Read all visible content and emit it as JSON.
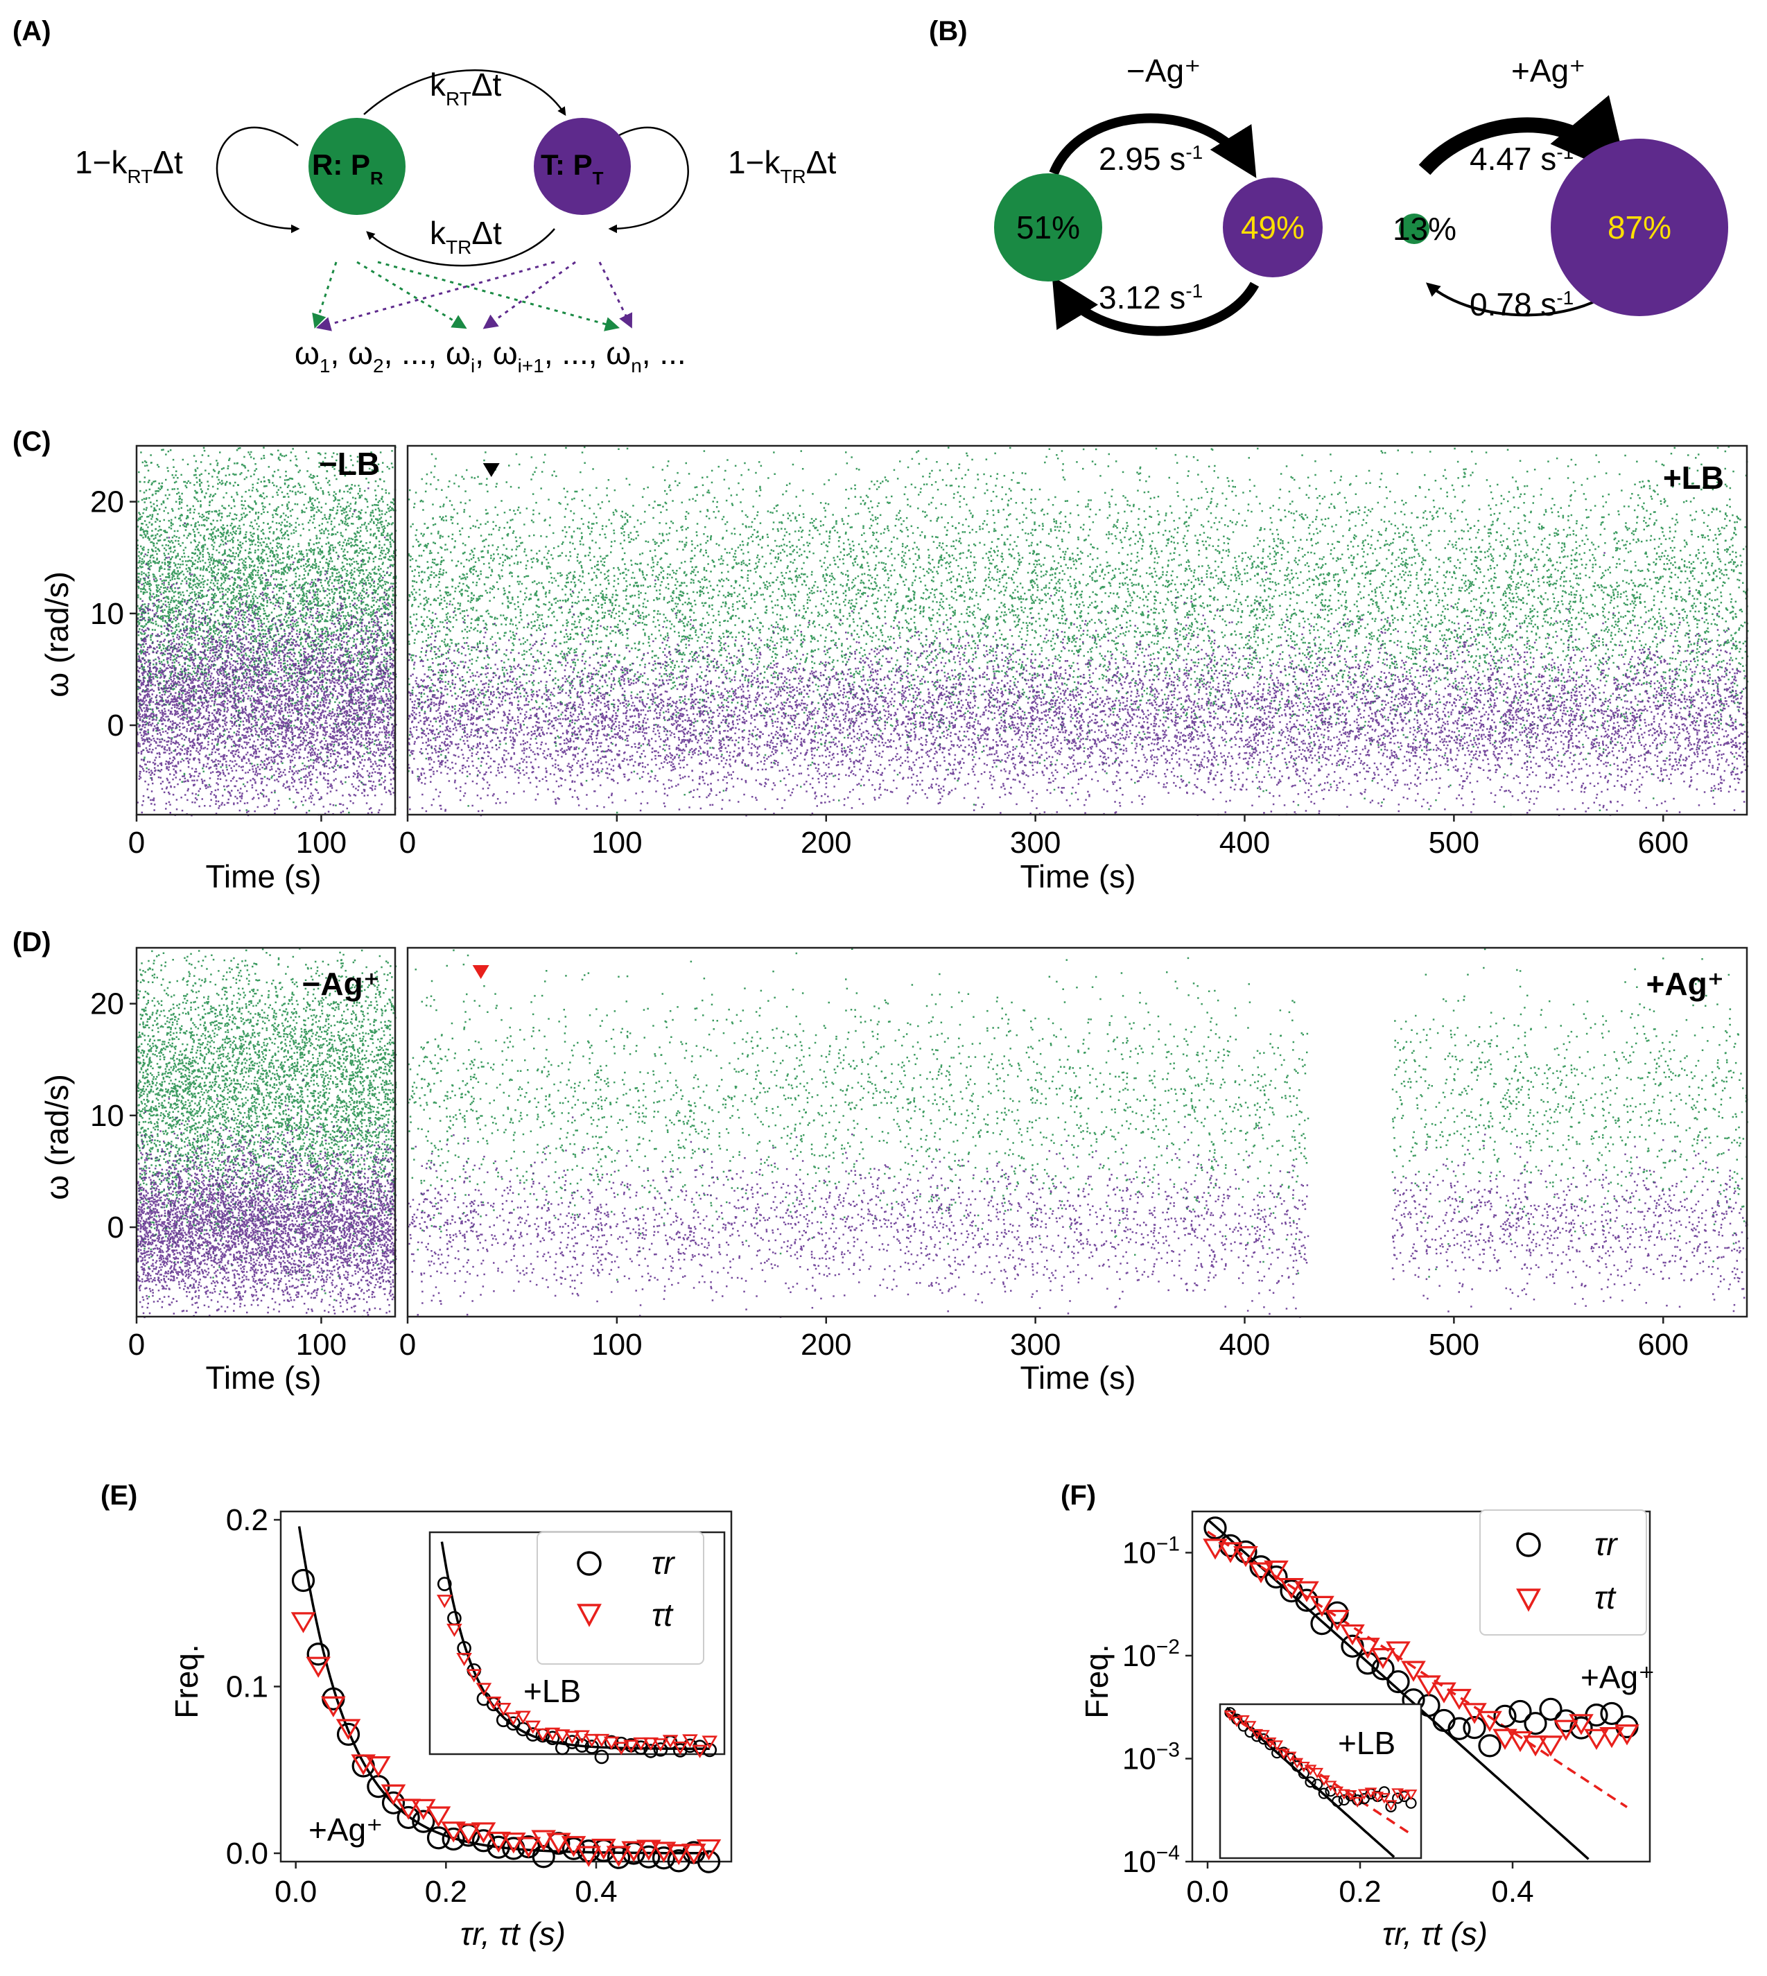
{
  "panels": {
    "a": "(A)",
    "b": "(B)",
    "c": "(C)",
    "d": "(D)",
    "e": "(E)",
    "f": "(F)"
  },
  "colors": {
    "green": "#1a8a44",
    "purple": "#5e2a8c",
    "red": "#e8201c",
    "yellow": "#ffe000",
    "black": "#000000"
  },
  "diagram_a": {
    "r_state": "R: P",
    "r_sub": "R",
    "t_state": "T: P",
    "t_sub": "T",
    "self_left": "1−k",
    "self_left_sub": "RT",
    "self_left_tail": "Δt",
    "self_right": "1−k",
    "self_right_sub": "TR",
    "self_right_tail": "Δt",
    "top_rate": "k",
    "top_rate_sub": "RT",
    "top_rate_tail": "Δt",
    "bottom_rate": "k",
    "bottom_rate_sub": "TR",
    "bottom_rate_tail": "Δt",
    "obs": [
      {
        "t": "ω",
        "s": "1",
        "r": ", "
      },
      {
        "t": "ω",
        "s": "2",
        "r": ", ..., "
      },
      {
        "t": "ω",
        "s": "i",
        "r": ", "
      },
      {
        "t": "ω",
        "s": "i+1",
        "r": ", ..., "
      },
      {
        "t": "ω",
        "s": "n",
        "r": ", ..."
      }
    ]
  },
  "diagram_b": {
    "minus": {
      "title": "−Ag⁺",
      "r_pct": "51%",
      "t_pct": "49%",
      "rate_top": "2.95 s",
      "rate_bottom": "3.12 s",
      "unit_sup": "-1",
      "r_pop": 0.51,
      "t_pop": 0.49
    },
    "plus": {
      "title": "+Ag⁺",
      "r_pct": "13%",
      "t_pct": "87%",
      "rate_top": "4.47 s",
      "rate_bottom": "0.78 s",
      "unit_sup": "-1",
      "r_pop": 0.13,
      "t_pop": 0.87
    }
  },
  "chart_data": [
    {
      "id": "C",
      "type": "scatter",
      "description_free": true,
      "ylabel": "ω (rad/s)",
      "ylim": [
        -8,
        25
      ],
      "yticks": [
        0,
        10,
        20
      ],
      "subplots": [
        {
          "label": "−LB",
          "xlabel": "Time (s)",
          "xlim": [
            0,
            140
          ],
          "xticks": [
            0,
            100
          ],
          "series": [
            {
              "name": "R",
              "color": "green",
              "mean": 12,
              "sd": 6.5
            },
            {
              "name": "T",
              "color": "purple",
              "mean": 2,
              "sd": 4.5
            }
          ]
        },
        {
          "label": "+LB",
          "xlabel": "Time (s)",
          "xlim": [
            0,
            640
          ],
          "xticks": [
            0,
            100,
            200,
            300,
            400,
            500,
            600
          ],
          "marker_time": 40,
          "marker_color": "black",
          "series": [
            {
              "name": "R",
              "color": "green",
              "mean": 11,
              "sd": 6
            },
            {
              "name": "T",
              "color": "purple",
              "mean": 0.5,
              "sd": 3.5
            }
          ]
        }
      ]
    },
    {
      "id": "D",
      "type": "scatter",
      "ylabel": "ω (rad/s)",
      "ylim": [
        -8,
        25
      ],
      "yticks": [
        0,
        10,
        20
      ],
      "subplots": [
        {
          "label": "−Ag⁺",
          "xlabel": "Time (s)",
          "xlim": [
            0,
            140
          ],
          "xticks": [
            0,
            100
          ],
          "series": [
            {
              "name": "R",
              "color": "green",
              "mean": 12,
              "sd": 6
            },
            {
              "name": "T",
              "color": "purple",
              "mean": 0,
              "sd": 3.5
            }
          ]
        },
        {
          "label": "+Ag⁺",
          "xlabel": "Time (s)",
          "xlim": [
            0,
            640
          ],
          "xticks": [
            0,
            100,
            200,
            300,
            400,
            500,
            600
          ],
          "marker_time": 35,
          "marker_color": "red",
          "gap": [
            430,
            470
          ],
          "series": [
            {
              "name": "R",
              "color": "green",
              "mean": 11,
              "sd": 5
            },
            {
              "name": "T",
              "color": "purple",
              "mean": 0,
              "sd": 3
            }
          ]
        }
      ]
    },
    {
      "id": "E",
      "type": "scatter",
      "xlabel": "τr, τt (s)",
      "ylabel": "Freq.",
      "xlim": [
        -0.02,
        0.58
      ],
      "ylim": [
        -0.005,
        0.205
      ],
      "xticks": [
        0.0,
        0.2,
        0.4
      ],
      "xtick_labels": [
        "0.0",
        "0.2",
        "0.4"
      ],
      "yticks": [
        0.0,
        0.1,
        0.2
      ],
      "ytick_labels": [
        "0.0",
        "0.1",
        "0.2"
      ],
      "annotation": "+Ag⁺",
      "legend": [
        "τr",
        "τt"
      ],
      "series": [
        {
          "name": "τr",
          "marker": "circle",
          "color": "black",
          "amp": 0.185,
          "rate": 14.0
        },
        {
          "name": "τt",
          "marker": "triangle",
          "color": "red",
          "amp": 0.152,
          "rate": 11.5,
          "offset": 0.004
        }
      ],
      "fit": {
        "amp": 0.21,
        "rate": 15.0
      },
      "x_points": [
        0.01,
        0.03,
        0.05,
        0.07,
        0.09,
        0.11,
        0.13,
        0.15,
        0.17,
        0.19,
        0.21,
        0.23,
        0.25,
        0.27,
        0.29,
        0.31,
        0.33,
        0.35,
        0.37,
        0.39,
        0.41,
        0.43,
        0.45,
        0.47,
        0.49,
        0.51,
        0.53,
        0.55
      ],
      "inset": {
        "annotation": "+LB"
      }
    },
    {
      "id": "F",
      "type": "scatter",
      "yscale": "log",
      "xlabel": "τr, τt (s)",
      "ylabel": "Freq.",
      "xlim": [
        -0.02,
        0.58
      ],
      "ylim_exp": [
        -4,
        -0.6
      ],
      "xticks": [
        0.0,
        0.2,
        0.4
      ],
      "xtick_labels": [
        "0.0",
        "0.2",
        "0.4"
      ],
      "ytick_exps": [
        -4,
        -3,
        -2,
        -1
      ],
      "ytick_base": "10",
      "annotation": "+Ag⁺",
      "legend": [
        "τr",
        "τt"
      ],
      "series": [
        {
          "name": "τr",
          "marker": "circle",
          "color": "black",
          "amp": 0.185,
          "rate": 14.0
        },
        {
          "name": "τt",
          "marker": "triangle",
          "color": "red",
          "amp": 0.155,
          "rate": 11.2
        }
      ],
      "fits": [
        {
          "amp": 0.21,
          "rate": 15.2,
          "style": "solid",
          "color": "black"
        },
        {
          "amp": 0.16,
          "rate": 11.2,
          "style": "dashed",
          "color": "red"
        }
      ],
      "inset": {
        "annotation": "+LB"
      }
    }
  ]
}
